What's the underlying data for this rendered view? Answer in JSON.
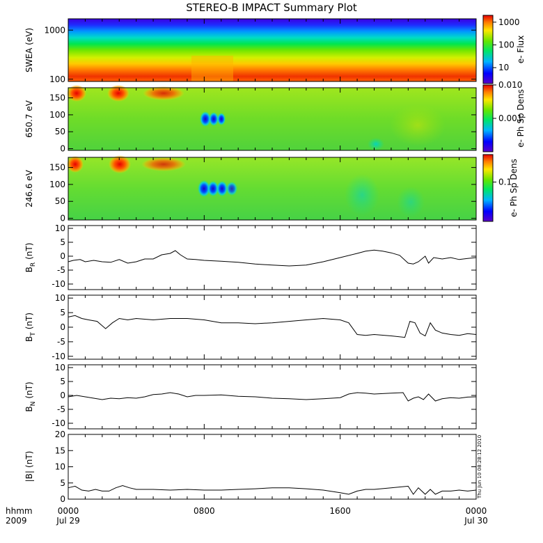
{
  "title": "STEREO-B IMPACT Summary Plot",
  "footer": {
    "hhmm_label": "hhmm",
    "year_label": "2009"
  },
  "x_axis": {
    "ticks": [
      "0000",
      "0800",
      "1600",
      "0000"
    ],
    "tick_hours": [
      0,
      8,
      16,
      24
    ],
    "date_labels": [
      "Jul 29",
      "Jul 30"
    ]
  },
  "stamp": "Thu Jun 10 08:28:12 2010",
  "colors": {
    "line": "#000000",
    "frame": "#000000"
  },
  "chart_data": [
    {
      "type": "heatmap",
      "name": "swea",
      "ylabel": "SWEA (eV)",
      "y_scale": "log",
      "ylim": [
        90,
        1700
      ],
      "yticks": [
        100,
        1000
      ],
      "ytick_labels": [
        "100",
        "1000"
      ],
      "colorbar": {
        "label": "e- Flux",
        "scale": "log",
        "range": [
          2,
          2000
        ],
        "ticks": [
          10,
          100,
          1000
        ],
        "tick_labels": [
          "10",
          "100",
          "1000"
        ]
      }
    },
    {
      "type": "heatmap",
      "name": "pad650",
      "ylabel": "650.7 eV",
      "ylim": [
        -5,
        180
      ],
      "yticks": [
        0,
        50,
        100,
        150
      ],
      "ytick_labels": [
        "0",
        "50",
        "100",
        "150"
      ],
      "colorbar": {
        "label": "e- Ph Sp Dens",
        "scale": "log",
        "range": [
          0.0001,
          0.01
        ],
        "ticks": [
          0.001,
          0.01
        ],
        "tick_labels": [
          "0.001",
          "0.010"
        ]
      }
    },
    {
      "type": "heatmap",
      "name": "pad246",
      "ylabel": "246.6 eV",
      "ylim": [
        -5,
        180
      ],
      "yticks": [
        0,
        50,
        100,
        150
      ],
      "ytick_labels": [
        "0",
        "50",
        "100",
        "150"
      ],
      "colorbar": {
        "label": "e- Ph Sp Dens",
        "scale": "log",
        "range": [
          0.01,
          0.5
        ],
        "ticks": [
          0.1
        ],
        "tick_labels": [
          "0.1"
        ]
      }
    },
    {
      "type": "line",
      "name": "br",
      "ylabel_main": "B",
      "ylabel_sub": "R",
      "ylabel_unit": "(nT)",
      "ylim": [
        -12,
        11
      ],
      "yticks": [
        -10,
        -5,
        0,
        5,
        10
      ],
      "ytick_labels": [
        "-10",
        "-5",
        "0",
        "5",
        "10"
      ],
      "x": [
        0,
        0.3,
        0.7,
        1.0,
        1.5,
        2.0,
        2.5,
        3.0,
        3.5,
        4.0,
        4.5,
        5.0,
        5.5,
        6.0,
        6.3,
        6.6,
        7.0,
        7.5,
        8.0,
        9.0,
        10.0,
        11.0,
        12.0,
        13.0,
        14.0,
        15.0,
        16.0,
        17.0,
        17.5,
        18.0,
        18.5,
        19.0,
        19.5,
        20.0,
        20.3,
        20.6,
        21.0,
        21.2,
        21.5,
        22.0,
        22.5,
        23.0,
        23.5,
        24.0
      ],
      "y": [
        -2,
        -1.5,
        -1.2,
        -2,
        -1.5,
        -2,
        -2.2,
        -1.2,
        -2.5,
        -2,
        -1,
        -1,
        0.5,
        1,
        2,
        0.5,
        -1,
        -1.2,
        -1.5,
        -1.8,
        -2.2,
        -2.8,
        -3.2,
        -3.5,
        -3.2,
        -2,
        -0.5,
        1,
        1.8,
        2.2,
        1.8,
        1.2,
        0.3,
        -2.5,
        -2.8,
        -2,
        0,
        -2.5,
        -0.5,
        -1,
        -0.5,
        -1.2,
        -0.8,
        -0.5
      ]
    },
    {
      "type": "line",
      "name": "bt",
      "ylabel_main": "B",
      "ylabel_sub": "T",
      "ylabel_unit": "(nT)",
      "ylim": [
        -11,
        11
      ],
      "yticks": [
        -10,
        -5,
        0,
        5,
        10
      ],
      "ytick_labels": [
        "-10",
        "-5",
        "0",
        "5",
        "10"
      ],
      "x": [
        0,
        0.4,
        0.8,
        1.2,
        1.7,
        2.2,
        2.6,
        3.0,
        3.5,
        4.0,
        5.0,
        6.0,
        7.0,
        8.0,
        9.0,
        10.0,
        11.0,
        12.0,
        13.0,
        14.0,
        15.0,
        16.0,
        16.5,
        17.0,
        17.5,
        18.0,
        19.0,
        19.8,
        20.1,
        20.4,
        20.7,
        21.0,
        21.3,
        21.6,
        22.0,
        22.5,
        23.0,
        23.5,
        24.0
      ],
      "y": [
        3.5,
        4,
        3,
        2.5,
        2,
        -0.5,
        1.5,
        3,
        2.5,
        3,
        2.5,
        3,
        3,
        2.5,
        1.5,
        1.5,
        1.2,
        1.5,
        2.0,
        2.5,
        3.0,
        2.5,
        1.5,
        -2.5,
        -2.8,
        -2.5,
        -3,
        -3.5,
        2,
        1.5,
        -2,
        -3,
        1.5,
        -1,
        -2,
        -2.5,
        -2.8,
        -2.2,
        -2.5
      ]
    },
    {
      "type": "line",
      "name": "bn",
      "ylabel_main": "B",
      "ylabel_sub": "N",
      "ylabel_unit": "(nT)",
      "ylim": [
        -12,
        11
      ],
      "yticks": [
        -10,
        -5,
        0,
        5,
        10
      ],
      "ytick_labels": [
        "-10",
        "-5",
        "0",
        "5",
        "10"
      ],
      "x": [
        0,
        0.5,
        1.0,
        1.5,
        2.0,
        2.5,
        3.0,
        3.5,
        4.0,
        4.5,
        5.0,
        5.5,
        6.0,
        6.5,
        7.0,
        7.5,
        8.0,
        9.0,
        10.0,
        11.0,
        12.0,
        13.0,
        14.0,
        15.0,
        16.0,
        16.5,
        17.0,
        17.5,
        18.0,
        19.0,
        19.7,
        20.0,
        20.3,
        20.6,
        20.9,
        21.2,
        21.6,
        22.0,
        22.5,
        23.0,
        23.5,
        24.0
      ],
      "y": [
        -0.5,
        0,
        -0.5,
        -1,
        -1.5,
        -1,
        -1.2,
        -0.8,
        -1,
        -0.5,
        0.3,
        0.5,
        1,
        0.5,
        -0.5,
        0,
        0,
        0.2,
        -0.3,
        -0.5,
        -1,
        -1.2,
        -1.5,
        -1.2,
        -0.8,
        0.5,
        1,
        0.8,
        0.5,
        0.8,
        1,
        -2,
        -1,
        -0.5,
        -1.5,
        0.5,
        -2,
        -1.2,
        -0.8,
        -1,
        -0.6,
        -0.5
      ]
    },
    {
      "type": "line",
      "name": "bmag",
      "ylabel_main": "|B|",
      "ylabel_sub": "",
      "ylabel_unit": "(nT)",
      "ylim": [
        0,
        20
      ],
      "yticks": [
        0,
        5,
        10,
        15,
        20
      ],
      "ytick_labels": [
        "0",
        "5",
        "10",
        "15",
        "20"
      ],
      "x": [
        0,
        0.4,
        0.8,
        1.2,
        1.6,
        2.0,
        2.4,
        2.8,
        3.2,
        3.6,
        4.0,
        5.0,
        6.0,
        7.0,
        8.0,
        9.0,
        10.0,
        11.0,
        12.0,
        13.0,
        14.0,
        15.0,
        16.0,
        16.5,
        17.0,
        17.5,
        18.0,
        19.0,
        20.0,
        20.3,
        20.6,
        21.0,
        21.3,
        21.6,
        22.0,
        22.5,
        23.0,
        23.5,
        24.0
      ],
      "y": [
        3.5,
        4,
        2.8,
        2.5,
        3,
        2.5,
        2.5,
        3.5,
        4.2,
        3.5,
        3,
        3,
        2.8,
        3,
        2.8,
        2.8,
        3,
        3.2,
        3.5,
        3.5,
        3.2,
        2.8,
        2,
        1.5,
        2.5,
        3,
        3,
        3.5,
        4,
        1.5,
        3.5,
        1.5,
        3,
        1.5,
        2.5,
        2.5,
        2.8,
        2.5,
        2.8
      ]
    }
  ]
}
